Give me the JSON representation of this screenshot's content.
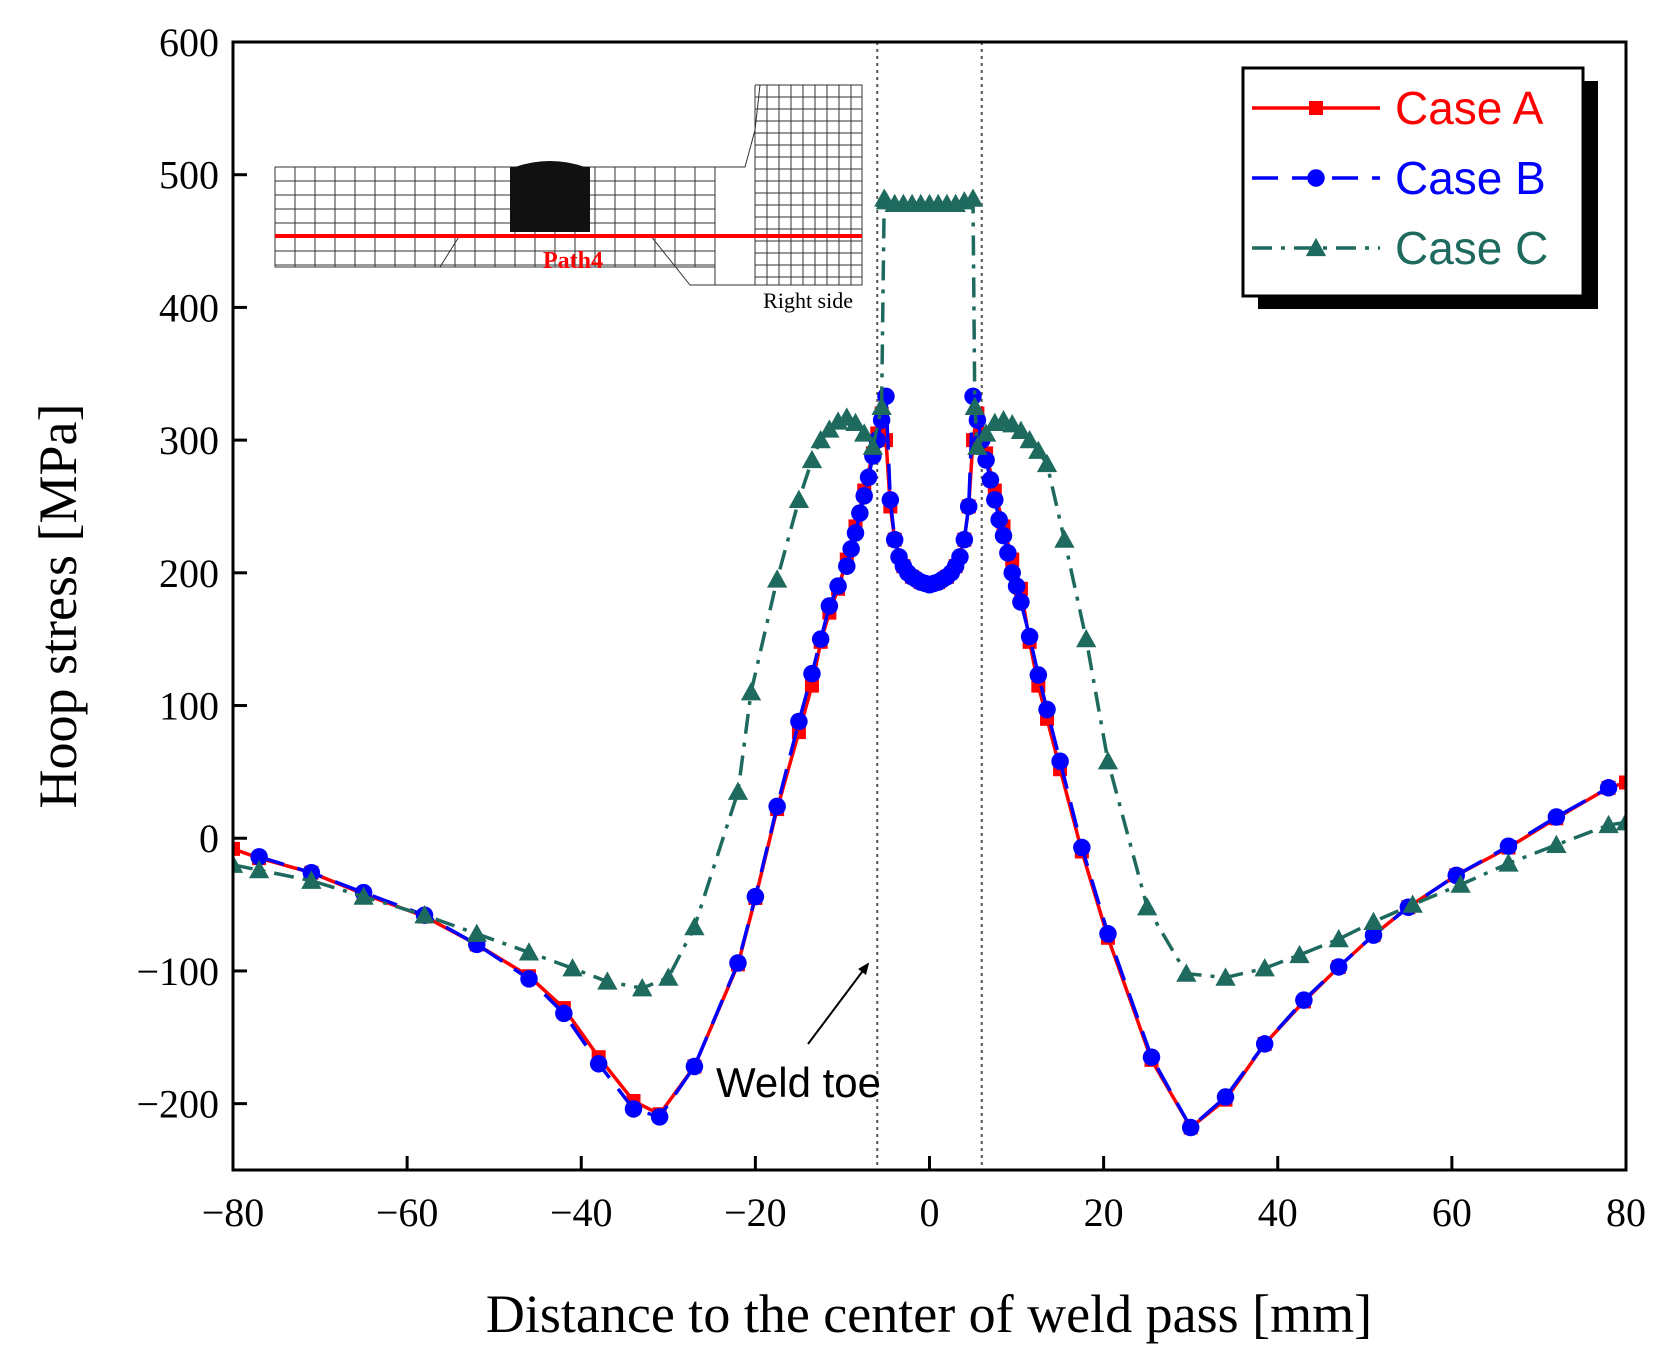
{
  "chart_data": {
    "type": "line",
    "title": "",
    "xlabel": "Distance to the center of weld pass [mm]",
    "ylabel": "Hoop stress [MPa]",
    "xlim": [
      -80,
      80
    ],
    "ylim": [
      -250,
      600
    ],
    "xticks": [
      -80,
      -60,
      -40,
      -20,
      0,
      20,
      40,
      60,
      80
    ],
    "yticks": [
      -200,
      -100,
      0,
      100,
      200,
      300,
      400,
      500,
      600
    ],
    "xtick_labels": [
      "−80",
      "−60",
      "−40",
      "−20",
      "0",
      "20",
      "40",
      "60",
      "80"
    ],
    "ytick_labels": [
      "−200",
      "−100",
      "0",
      "100",
      "200",
      "300",
      "400",
      "500",
      "600"
    ],
    "grid": false,
    "legend_position": "top-right",
    "series": [
      {
        "name": "Case A",
        "color": "#ff0000",
        "line_style": "solid",
        "marker": "square",
        "x": [
          -80,
          -77,
          -71,
          -65,
          -58,
          -52,
          -46,
          -42,
          -38,
          -34,
          -31,
          -27,
          -22,
          -20,
          -17.5,
          -15,
          -13.5,
          -12.5,
          -11.5,
          -10.5,
          -9.5,
          -8.5,
          -7.5,
          -6.5,
          -6,
          -5.5,
          -5,
          -4.5,
          -4,
          -3,
          -2,
          -1,
          0,
          1,
          2,
          3,
          4,
          4.5,
          5,
          5.5,
          6,
          6.5,
          7.5,
          8.5,
          9.5,
          10.5,
          11.5,
          12.5,
          13.5,
          15,
          17.5,
          20.5,
          25.5,
          30,
          34,
          38.5,
          43,
          47,
          51,
          55,
          60.5,
          66.5,
          72,
          78,
          80
        ],
        "y": [
          -8,
          -15,
          -26,
          -42,
          -59,
          -80,
          -104,
          -128,
          -165,
          -198,
          -208,
          -172,
          -95,
          -45,
          22,
          80,
          115,
          148,
          170,
          188,
          210,
          235,
          262,
          290,
          305,
          320,
          300,
          250,
          225,
          205,
          197,
          193,
          192,
          193,
          197,
          205,
          225,
          250,
          300,
          320,
          305,
          290,
          262,
          235,
          210,
          188,
          148,
          115,
          90,
          52,
          -10,
          -75,
          -167,
          -218,
          -197,
          -155,
          -123,
          -97,
          -73,
          -52,
          -28,
          -7,
          15,
          38,
          42
        ]
      },
      {
        "name": "Case B",
        "color": "#0000ff",
        "line_style": "dashed",
        "marker": "circle",
        "x": [
          -77,
          -71,
          -65,
          -58,
          -52,
          -46,
          -42,
          -38,
          -34,
          -31,
          -27,
          -22,
          -20,
          -17.5,
          -15,
          -13.5,
          -12.5,
          -11.5,
          -10.5,
          -9.5,
          -9,
          -8.5,
          -8,
          -7.5,
          -7,
          -6.5,
          -6,
          -5.5,
          -5,
          -4.5,
          -4,
          -3.5,
          -3,
          -2.5,
          -2,
          -1.5,
          -1,
          -0.5,
          0,
          0.5,
          1,
          1.5,
          2,
          2.5,
          3,
          3.5,
          4,
          4.5,
          5,
          5.5,
          6,
          6.5,
          7,
          7.5,
          8,
          8.5,
          9,
          9.5,
          10,
          10.5,
          11.5,
          12.5,
          13.5,
          15,
          17.5,
          20.5,
          25.5,
          30,
          34,
          38.5,
          43,
          47,
          51,
          55,
          60.5,
          66.5,
          72,
          78
        ],
        "y": [
          -14,
          -26,
          -41,
          -58,
          -80,
          -106,
          -132,
          -170,
          -204,
          -210,
          -172,
          -94,
          -44,
          24,
          88,
          124,
          150,
          175,
          190,
          205,
          218,
          230,
          245,
          258,
          272,
          288,
          300,
          315,
          333,
          255,
          225,
          212,
          205,
          200,
          197,
          195,
          193,
          192,
          191,
          192,
          193,
          195,
          197,
          200,
          205,
          212,
          225,
          250,
          333,
          315,
          300,
          285,
          270,
          255,
          240,
          228,
          215,
          200,
          190,
          178,
          152,
          123,
          97,
          58,
          -7,
          -72,
          -165,
          -218,
          -195,
          -155,
          -122,
          -97,
          -73,
          -52,
          -28,
          -6,
          16,
          38
        ]
      },
      {
        "name": "Case C",
        "color": "#1e6a5e",
        "line_style": "dash-dot",
        "marker": "triangle",
        "x": [
          -80,
          -77,
          -71,
          -65,
          -58,
          -52,
          -46,
          -41,
          -37,
          -33,
          -30,
          -27,
          -22,
          -20.5,
          -17.5,
          -15,
          -13.5,
          -12.5,
          -11.5,
          -10.5,
          -9.5,
          -8.5,
          -7.5,
          -6.5,
          -5.5,
          -5.2,
          -5,
          -4,
          -3,
          -2,
          -1,
          0,
          1,
          2,
          3,
          4,
          5,
          5.2,
          5.5,
          6.5,
          7.5,
          8.5,
          9.5,
          10.5,
          11.5,
          12.5,
          13.5,
          15.5,
          18,
          20.5,
          25,
          29.5,
          34,
          38.5,
          42.5,
          47,
          51,
          55.5,
          61,
          66.5,
          72,
          78,
          80
        ],
        "y": [
          -20,
          -24,
          -32,
          -44,
          -58,
          -72,
          -86,
          -98,
          -108,
          -113,
          -105,
          -67,
          35,
          110,
          195,
          255,
          285,
          300,
          308,
          314,
          317,
          313,
          305,
          295,
          325,
          482,
          480,
          478,
          478,
          478,
          478,
          478,
          478,
          478,
          478,
          480,
          482,
          325,
          295,
          305,
          313,
          315,
          312,
          307,
          300,
          292,
          282,
          225,
          150,
          58,
          -52,
          -102,
          -105,
          -98,
          -88,
          -76,
          -63,
          -50,
          -35,
          -19,
          -5,
          10,
          12
        ]
      }
    ],
    "annotations": {
      "weld_toe_label": "Weld toe",
      "weld_toe_lines_x": [
        -6,
        6
      ]
    },
    "inset": {
      "path_label": "Path4",
      "side_label": "Right side"
    }
  }
}
